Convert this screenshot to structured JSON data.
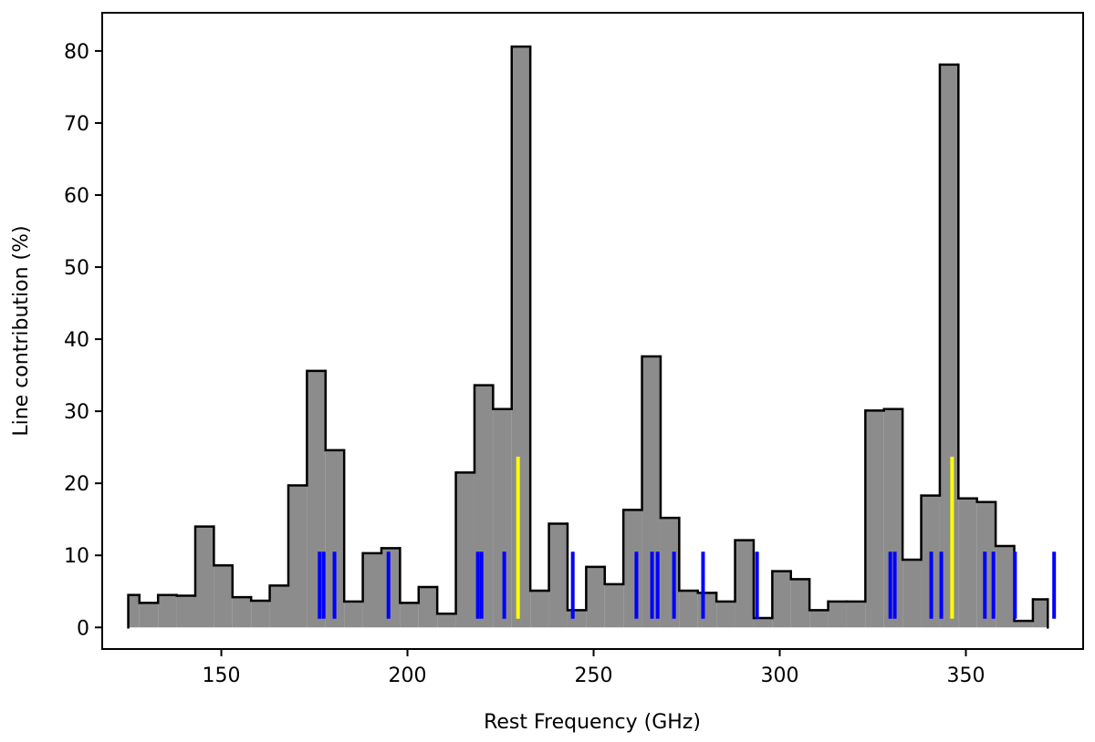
{
  "chart_data": {
    "type": "histogram",
    "xlabel": "Rest Frequency (GHz)",
    "ylabel": "Line contribution (%)",
    "bins": [
      125,
      128,
      133,
      138,
      143,
      148,
      153,
      158,
      163,
      168,
      173,
      178,
      183,
      188,
      193,
      198,
      203,
      208,
      213,
      218,
      223,
      228,
      233,
      238,
      243,
      248,
      253,
      258,
      263,
      268,
      273,
      278,
      283,
      288,
      293,
      298,
      303,
      308,
      313,
      318,
      323,
      328,
      333,
      338,
      343,
      348,
      353,
      358,
      363,
      368,
      372
    ],
    "values": [
      4.5,
      3.4,
      4.5,
      4.4,
      14,
      8.6,
      4.2,
      3.7,
      5.8,
      19.7,
      35.6,
      24.6,
      3.6,
      10.3,
      11,
      3.4,
      5.6,
      1.9,
      21.5,
      33.6,
      30.3,
      80.6,
      5.1,
      14.4,
      2.4,
      8.4,
      6.0,
      16.3,
      37.6,
      15.2,
      5.1,
      4.8,
      3.6,
      12.1,
      1.3,
      7.8,
      6.7,
      2.4,
      3.6,
      3.6,
      30.1,
      30.3,
      9.4,
      18.3,
      78.1,
      17.9,
      17.4,
      11.3,
      0.9,
      3.9
    ],
    "color": "#8c8c8c",
    "edgecolor": "#000000",
    "markers": [
      {
        "color": "#0000ff",
        "ymin": 1.2,
        "ymax": 10.5,
        "x": [
          176.4,
          177.5,
          180.4,
          194.9,
          218.9,
          219.9,
          226,
          244.4,
          261.5,
          265.7,
          267.2,
          271.6,
          279.4,
          293.9,
          329.7,
          330.9,
          340.7,
          343.4,
          355.1,
          357.4,
          363.2,
          373.7
        ]
      },
      {
        "color": "#ffff00",
        "ymin": 1.2,
        "ymax": 23.7,
        "x": [
          229.7,
          346.3
        ]
      }
    ],
    "xlim": [
      118,
      381.5
    ],
    "ylim": [
      -3,
      85.3
    ],
    "xticks": [
      150,
      200,
      250,
      300,
      350
    ],
    "yticks": [
      0,
      10,
      20,
      30,
      40,
      50,
      60,
      70,
      80
    ]
  }
}
